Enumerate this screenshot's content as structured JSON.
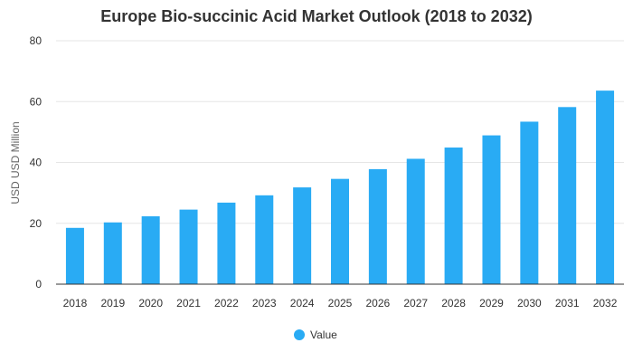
{
  "chart_data": {
    "type": "bar",
    "title": "Europe Bio-succinic Acid Market Outlook (2018 to 2032)",
    "xlabel": "",
    "ylabel": "USD USD Million",
    "ylim": [
      0,
      80
    ],
    "yticks": [
      0,
      20,
      40,
      60,
      80
    ],
    "grid": true,
    "legend_position": "bottom",
    "categories": [
      "2018",
      "2019",
      "2020",
      "2021",
      "2022",
      "2023",
      "2024",
      "2025",
      "2026",
      "2027",
      "2028",
      "2029",
      "2030",
      "2031",
      "2032"
    ],
    "series": [
      {
        "name": "Value",
        "color": "#29abf4",
        "values": [
          18.5,
          20.3,
          22.3,
          24.5,
          26.8,
          29.2,
          31.8,
          34.6,
          37.8,
          41.2,
          44.9,
          48.9,
          53.4,
          58.2,
          63.6
        ]
      }
    ]
  }
}
